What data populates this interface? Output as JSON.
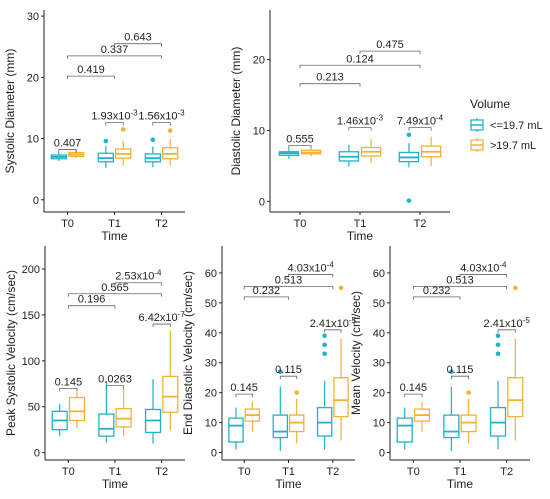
{
  "legend": {
    "title": "Volume",
    "items": [
      {
        "label": "<=19.7 mL",
        "color": "#1fb3c8"
      },
      {
        "label": ">19.7 mL",
        "color": "#f2b233"
      }
    ]
  },
  "chart_data": [
    {
      "type": "box",
      "xlabel": "Time",
      "ylabel": "Systolic Diameter (mm)",
      "categories": [
        "T0",
        "T1",
        "T2"
      ],
      "ylim": [
        -2,
        31
      ],
      "yticks": [
        0,
        10,
        20,
        30
      ],
      "series": [
        {
          "name": "<=19.7 mL",
          "color": "#1fb3c8",
          "boxes": [
            {
              "min": 6.3,
              "q1": 6.7,
              "median": 7.0,
              "q3": 7.3,
              "max": 7.7,
              "outliers": []
            },
            {
              "min": 5.2,
              "q1": 6.2,
              "median": 6.8,
              "q3": 7.6,
              "max": 8.8,
              "outliers": [
                9.6
              ]
            },
            {
              "min": 5.3,
              "q1": 6.2,
              "median": 6.8,
              "q3": 7.5,
              "max": 8.7,
              "outliers": [
                9.8
              ]
            }
          ]
        },
        {
          "name": ">19.7 mL",
          "color": "#f2b233",
          "boxes": [
            {
              "min": 6.8,
              "q1": 7.1,
              "median": 7.4,
              "q3": 7.7,
              "max": 8.1,
              "outliers": []
            },
            {
              "min": 5.6,
              "q1": 6.8,
              "median": 7.5,
              "q3": 8.3,
              "max": 9.6,
              "outliers": [
                11.5
              ]
            },
            {
              "min": 5.6,
              "q1": 6.7,
              "median": 7.5,
              "q3": 8.5,
              "max": 9.9,
              "outliers": [
                11.3
              ]
            }
          ]
        }
      ],
      "annotations": [
        {
          "label": "0.643",
          "from": "T1",
          "to": "T2",
          "y": 25.5
        },
        {
          "label": "0.337",
          "from": "T0",
          "to": "T2",
          "y": 23.5
        },
        {
          "label": "0.419",
          "from": "T0",
          "to": "T1",
          "y": 20.2
        },
        {
          "label": "0.407",
          "group": "T0",
          "y": 8.2
        },
        {
          "label": "1.93x10",
          "exp": "-3",
          "group": "T1",
          "y": 12.6
        },
        {
          "label": "1.56x10",
          "exp": "-3",
          "group": "T2",
          "y": 12.6
        }
      ]
    },
    {
      "type": "box",
      "xlabel": "Time",
      "ylabel": "Diastolic Diameter (mm)",
      "categories": [
        "T0",
        "T1",
        "T2"
      ],
      "ylim": [
        -1.5,
        27
      ],
      "yticks": [
        0,
        10,
        20
      ],
      "series": [
        {
          "name": "<=19.7 mL",
          "color": "#1fb3c8",
          "boxes": [
            {
              "min": 6.0,
              "q1": 6.5,
              "median": 6.8,
              "q3": 7.0,
              "max": 7.5,
              "outliers": []
            },
            {
              "min": 4.9,
              "q1": 5.7,
              "median": 6.3,
              "q3": 7.0,
              "max": 8.0,
              "outliers": []
            },
            {
              "min": 4.8,
              "q1": 5.6,
              "median": 6.2,
              "q3": 6.9,
              "max": 8.2,
              "outliers": [
                9.4,
                0.1
              ]
            }
          ]
        },
        {
          "name": ">19.7 mL",
          "color": "#f2b233",
          "boxes": [
            {
              "min": 6.4,
              "q1": 6.7,
              "median": 6.9,
              "q3": 7.2,
              "max": 7.6,
              "outliers": []
            },
            {
              "min": 5.4,
              "q1": 6.4,
              "median": 7.0,
              "q3": 7.6,
              "max": 8.8,
              "outliers": []
            },
            {
              "min": 5.0,
              "q1": 6.3,
              "median": 7.0,
              "q3": 7.8,
              "max": 9.1,
              "outliers": []
            }
          ]
        }
      ],
      "annotations": [
        {
          "label": "0.475",
          "from": "T1",
          "to": "T2",
          "y": 21.2
        },
        {
          "label": "0.124",
          "from": "T0",
          "to": "T2",
          "y": 19.2
        },
        {
          "label": "0.213",
          "from": "T0",
          "to": "T1",
          "y": 16.6
        },
        {
          "label": "0.555",
          "group": "T0",
          "y": 7.9
        },
        {
          "label": "1.46x10",
          "exp": "-3",
          "group": "T1",
          "y": 10.4
        },
        {
          "label": "7.49x10",
          "exp": "-4",
          "group": "T2",
          "y": 10.4
        }
      ]
    },
    {
      "type": "box",
      "xlabel": "Time",
      "ylabel": "Peak Systolic Velocity (cm/sec)",
      "categories": [
        "T0",
        "T1",
        "T2"
      ],
      "ylim": [
        -8,
        225
      ],
      "yticks": [
        0,
        50,
        100,
        150,
        200
      ],
      "series": [
        {
          "name": "<=19.7 mL",
          "color": "#1fb3c8",
          "boxes": [
            {
              "min": 18,
              "q1": 25,
              "median": 35,
              "q3": 45,
              "max": 53,
              "outliers": []
            },
            {
              "min": 11,
              "q1": 18,
              "median": 26,
              "q3": 42,
              "max": 78,
              "outliers": []
            },
            {
              "min": 10,
              "q1": 22,
              "median": 35,
              "q3": 47,
              "max": 80,
              "outliers": []
            }
          ]
        },
        {
          "name": ">19.7 mL",
          "color": "#f2b233",
          "boxes": [
            {
              "min": 27,
              "q1": 35,
              "median": 45,
              "q3": 60,
              "max": 67,
              "outliers": []
            },
            {
              "min": 18,
              "q1": 28,
              "median": 37,
              "q3": 48,
              "max": 70,
              "outliers": []
            },
            {
              "min": 24,
              "q1": 44,
              "median": 61,
              "q3": 83,
              "max": 133,
              "outliers": []
            }
          ]
        }
      ],
      "annotations": [
        {
          "label": "2.53x10",
          "exp": "-4",
          "from": "T1",
          "to": "T2",
          "y": 185
        },
        {
          "label": "0.565",
          "from": "T0",
          "to": "T2",
          "y": 173
        },
        {
          "label": "0.196",
          "from": "T0",
          "to": "T1",
          "y": 160
        },
        {
          "label": "0.145",
          "group": "T0",
          "y": 70
        },
        {
          "label": "0.0263",
          "group": "T1",
          "y": 73
        },
        {
          "label": "6.42x10",
          "exp": "-7",
          "group": "T2",
          "y": 140
        }
      ]
    },
    {
      "type": "box",
      "xlabel": "Time",
      "ylabel": "End Diastolic Velocity (cm/sec)",
      "categories": [
        "T0",
        "T1",
        "T2"
      ],
      "ylim": [
        -2.5,
        69
      ],
      "yticks": [
        0,
        10,
        20,
        30,
        40,
        50,
        60
      ],
      "series": [
        {
          "name": "<=19.7 mL",
          "color": "#1fb3c8",
          "boxes": [
            {
              "min": 1,
              "q1": 3.5,
              "median": 9,
              "q3": 11.5,
              "max": 15,
              "outliers": []
            },
            {
              "min": 0.5,
              "q1": 5,
              "median": 7,
              "q3": 12.5,
              "max": 22,
              "outliers": [
                27
              ]
            },
            {
              "min": 1,
              "q1": 5.5,
              "median": 10,
              "q3": 15,
              "max": 24,
              "outliers": [
                33,
                36,
                39
              ]
            }
          ]
        },
        {
          "name": ">19.7 mL",
          "color": "#f2b233",
          "boxes": [
            {
              "min": 7,
              "q1": 10.5,
              "median": 12.5,
              "q3": 14.5,
              "max": 17,
              "outliers": []
            },
            {
              "min": 3,
              "q1": 7,
              "median": 10,
              "q3": 12.5,
              "max": 18,
              "outliers": [
                20
              ]
            },
            {
              "min": 4,
              "q1": 12,
              "median": 17.5,
              "q3": 25,
              "max": 38,
              "outliers": [
                55
              ]
            }
          ]
        }
      ],
      "annotations": [
        {
          "label": "4.03x10",
          "exp": "-4",
          "from": "T1",
          "to": "T2",
          "y": 59.5
        },
        {
          "label": "0.513",
          "from": "T0",
          "to": "T2",
          "y": 55.5
        },
        {
          "label": "0.232",
          "from": "T0",
          "to": "T1",
          "y": 52
        },
        {
          "label": "0.145",
          "group": "T0",
          "y": 19.5
        },
        {
          "label": "0.115",
          "group": "T1",
          "y": 25.5
        },
        {
          "label": "2.41x10",
          "exp": "-5",
          "group": "T2",
          "y": 41
        }
      ]
    },
    {
      "type": "box",
      "xlabel": "Time",
      "ylabel": "Mean Velocity (cm/sec)",
      "categories": [
        "T0",
        "T1",
        "T2"
      ],
      "ylim": [
        -2.5,
        69
      ],
      "yticks": [
        0,
        10,
        20,
        30,
        40,
        50,
        60
      ],
      "series": [
        {
          "name": "<=19.7 mL",
          "color": "#1fb3c8",
          "boxes": [
            {
              "min": 1,
              "q1": 3.5,
              "median": 9,
              "q3": 11.5,
              "max": 15,
              "outliers": []
            },
            {
              "min": 0.5,
              "q1": 5,
              "median": 7,
              "q3": 12.5,
              "max": 22,
              "outliers": [
                27
              ]
            },
            {
              "min": 1,
              "q1": 5.5,
              "median": 10,
              "q3": 15,
              "max": 24,
              "outliers": [
                33,
                36,
                39
              ]
            }
          ]
        },
        {
          "name": ">19.7 mL",
          "color": "#f2b233",
          "boxes": [
            {
              "min": 7,
              "q1": 10.5,
              "median": 12.5,
              "q3": 14.5,
              "max": 17,
              "outliers": []
            },
            {
              "min": 3,
              "q1": 7,
              "median": 10,
              "q3": 12.5,
              "max": 18,
              "outliers": [
                20
              ]
            },
            {
              "min": 4,
              "q1": 12,
              "median": 17.5,
              "q3": 25,
              "max": 38,
              "outliers": [
                55
              ]
            }
          ]
        }
      ],
      "annotations": [
        {
          "label": "4.03x10",
          "exp": "-4",
          "from": "T1",
          "to": "T2",
          "y": 59.5
        },
        {
          "label": "0.513",
          "from": "T0",
          "to": "T2",
          "y": 55.5
        },
        {
          "label": "0.232",
          "from": "T0",
          "to": "T1",
          "y": 52
        },
        {
          "label": "0.145",
          "group": "T0",
          "y": 19.5
        },
        {
          "label": "0.115",
          "group": "T1",
          "y": 25.5
        },
        {
          "label": "2.41x10",
          "exp": "-5",
          "group": "T2",
          "y": 41
        }
      ]
    }
  ]
}
